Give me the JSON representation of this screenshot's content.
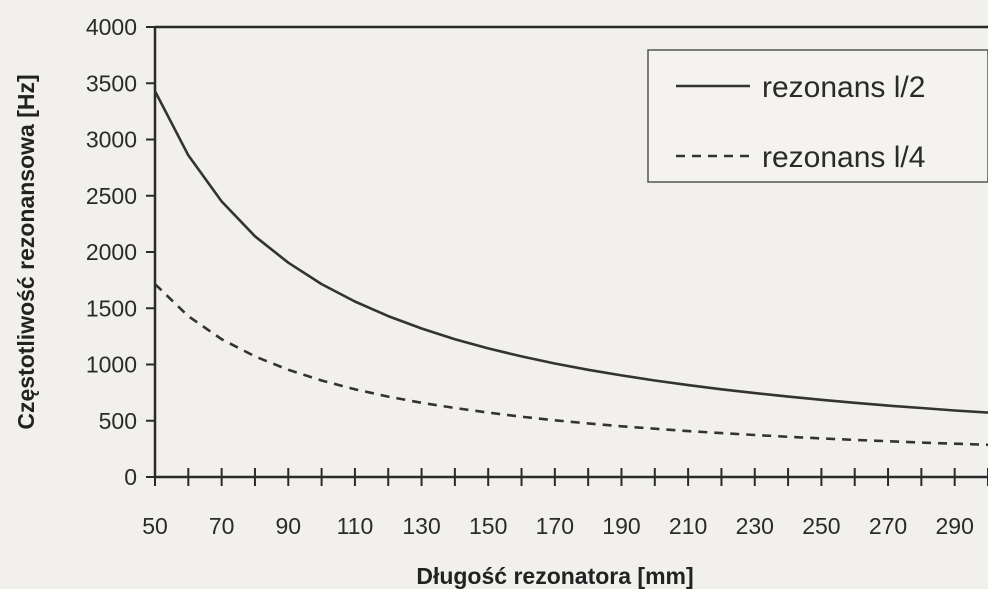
{
  "chart_data": {
    "type": "line",
    "title": "",
    "xlabel": "Długość rezonatora [mm]",
    "ylabel": "Częstotliwość rezonansowa [Hz]",
    "xlim": [
      50,
      300
    ],
    "ylim": [
      0,
      4000
    ],
    "x_ticks": [
      50,
      70,
      90,
      110,
      130,
      150,
      170,
      190,
      210,
      230,
      250,
      270,
      290
    ],
    "y_ticks": [
      0,
      500,
      1000,
      1500,
      2000,
      2500,
      3000,
      3500,
      4000
    ],
    "grid": false,
    "legend_position": "top-right",
    "series": [
      {
        "name": "rezonans l/2",
        "style": "solid",
        "color": "#333333",
        "x": [
          50,
          60,
          70,
          80,
          90,
          100,
          110,
          120,
          130,
          140,
          150,
          160,
          170,
          180,
          190,
          200,
          210,
          220,
          230,
          240,
          250,
          260,
          270,
          280,
          290,
          300
        ],
        "y": [
          3430,
          2860,
          2450,
          2140,
          1905,
          1715,
          1560,
          1430,
          1320,
          1225,
          1143,
          1072,
          1009,
          953,
          903,
          858,
          817,
          780,
          746,
          715,
          686,
          660,
          635,
          613,
          591,
          572
        ]
      },
      {
        "name": "rezonans l/4",
        "style": "dashed",
        "color": "#333333",
        "x": [
          50,
          60,
          70,
          80,
          90,
          100,
          110,
          120,
          130,
          140,
          150,
          160,
          170,
          180,
          190,
          200,
          210,
          220,
          230,
          240,
          250,
          260,
          270,
          280,
          290,
          300
        ],
        "y": [
          1715,
          1430,
          1225,
          1072,
          953,
          858,
          780,
          715,
          660,
          613,
          572,
          536,
          504,
          476,
          451,
          429,
          408,
          390,
          373,
          357,
          343,
          330,
          318,
          306,
          296,
          286
        ]
      }
    ]
  }
}
